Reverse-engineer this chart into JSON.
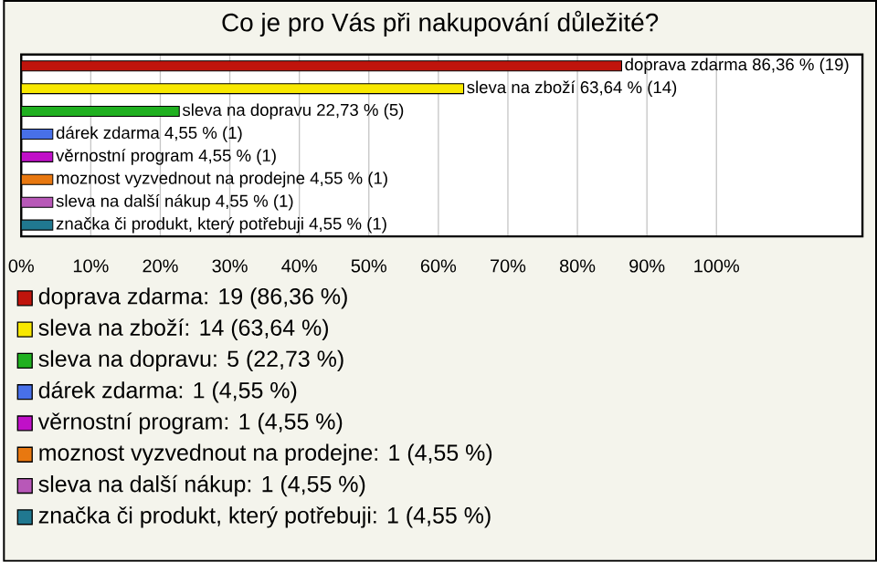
{
  "chart_data": {
    "type": "bar",
    "orientation": "horizontal",
    "title": "Co je pro Vás při nakupování důležité?",
    "categories": [
      null,
      null,
      null,
      null,
      null,
      null,
      null,
      null
    ],
    "values": [
      86.36,
      63.64,
      22.73,
      4.55,
      4.55,
      4.55,
      4.55,
      4.55
    ],
    "colors": [
      "#c0140c",
      "#f8e800",
      "#20b020",
      "#4870e8",
      "#c010c8",
      "#e87810",
      "#b858b8",
      "#207890"
    ],
    "xlim": [
      0,
      121
    ],
    "xticks": [
      {
        "value": 0,
        "label": "0%"
      },
      {
        "value": 10,
        "label": "10%"
      },
      {
        "value": 20,
        "label": "20%"
      },
      {
        "value": 30,
        "label": "30%"
      },
      {
        "value": 40,
        "label": "40%"
      },
      {
        "value": 50,
        "label": "50%"
      },
      {
        "value": 60,
        "label": "60%"
      },
      {
        "value": 70,
        "label": "70%"
      },
      {
        "value": 80,
        "label": "80%"
      },
      {
        "value": 90,
        "label": "90%"
      },
      {
        "value": 100,
        "label": "100%"
      }
    ],
    "grid": "x",
    "annotations": [
      {
        "text": "doprava zdarma 86,36 % (19)",
        "x": 86.36
      },
      {
        "text": "sleva na zboží 63,64 % (14)",
        "x": 63.64
      },
      {
        "text": "sleva na dopravu 22,73 % (5)",
        "x": 22.73
      },
      {
        "text": "dárek zdarma 4,55 % (1)",
        "x": 4.55
      },
      {
        "text": "věrnostní program 4,55 % (1)",
        "x": 4.55
      },
      {
        "text": "moznost vyzvednout na prodejne 4,55 % (1)",
        "x": 4.55
      },
      {
        "text": "sleva na další nákup 4,55 % (1)",
        "x": 4.55
      },
      {
        "text": "značka či produkt, který potřebuji 4,55 % (1)",
        "x": 4.55
      },
      "doprava zdarma: 19 (86,36 %)",
      "sleva na zboží: 14 (63,64 %)",
      "sleva na dopravu: 5 (22,73 %)",
      "dárek zdarma: 1 (4,55 %)",
      "věrnostní program: 1 (4,55 %)",
      "moznost vyzvednout na prodejne: 1 (4,55 %)",
      "sleva na další nákup: 1 (4,55 %)",
      "značka či produkt, který potřebuji: 1 (4,55 %)"
    ]
  }
}
